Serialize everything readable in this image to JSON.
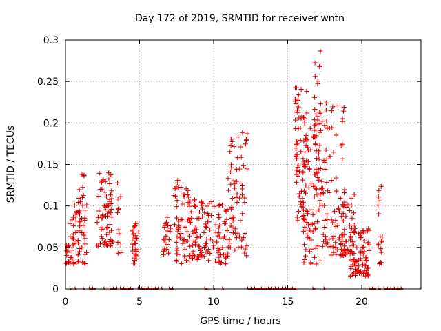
{
  "chart_data": {
    "type": "scatter",
    "title": "Day 172 of 2019, SRMTID for receiver wntn",
    "xlabel": "GPS time / hours",
    "ylabel": "SRMTID / TECUs",
    "xlim": [
      0,
      24
    ],
    "ylim": [
      0,
      0.3
    ],
    "xticks": [
      "0",
      "5",
      "10",
      "15",
      "20"
    ],
    "yticks": [
      "0",
      "0.05",
      "0.1",
      "0.15",
      "0.2",
      "0.25",
      "0.3"
    ],
    "grid": true,
    "marker": "+",
    "color": "#e00000",
    "clusters": [
      {
        "x_start": 0.0,
        "x_end": 0.35,
        "y_min": 0.03,
        "y_max": 0.06,
        "n": 14
      },
      {
        "x_start": 0.3,
        "x_end": 1.0,
        "y_min": 0.03,
        "y_max": 0.11,
        "n": 40
      },
      {
        "x_start": 0.9,
        "x_end": 1.5,
        "y_min": 0.03,
        "y_max": 0.14,
        "n": 30
      },
      {
        "x_start": 2.1,
        "x_end": 3.2,
        "y_min": 0.05,
        "y_max": 0.14,
        "n": 70
      },
      {
        "x_start": 3.5,
        "x_end": 3.8,
        "y_min": 0.04,
        "y_max": 0.13,
        "n": 12
      },
      {
        "x_start": 4.5,
        "x_end": 5.0,
        "y_min": 0.03,
        "y_max": 0.08,
        "n": 30
      },
      {
        "x_start": 6.6,
        "x_end": 7.1,
        "y_min": 0.04,
        "y_max": 0.09,
        "n": 22
      },
      {
        "x_start": 7.3,
        "x_end": 8.4,
        "y_min": 0.03,
        "y_max": 0.135,
        "n": 60
      },
      {
        "x_start": 8.3,
        "x_end": 9.4,
        "y_min": 0.035,
        "y_max": 0.11,
        "n": 60
      },
      {
        "x_start": 9.4,
        "x_end": 11.0,
        "y_min": 0.03,
        "y_max": 0.11,
        "n": 70
      },
      {
        "x_start": 10.9,
        "x_end": 12.3,
        "y_min": 0.04,
        "y_max": 0.19,
        "n": 70
      },
      {
        "x_start": 15.5,
        "x_end": 16.3,
        "y_min": 0.08,
        "y_max": 0.245,
        "n": 70
      },
      {
        "x_start": 16.0,
        "x_end": 17.2,
        "y_min": 0.03,
        "y_max": 0.22,
        "n": 80
      },
      {
        "x_start": 16.8,
        "x_end": 17.3,
        "y_min": 0.09,
        "y_max": 0.29,
        "n": 40
      },
      {
        "x_start": 17.2,
        "x_end": 18.8,
        "y_min": 0.04,
        "y_max": 0.225,
        "n": 80
      },
      {
        "x_start": 18.5,
        "x_end": 19.5,
        "y_min": 0.04,
        "y_max": 0.12,
        "n": 50
      },
      {
        "x_start": 19.2,
        "x_end": 20.5,
        "y_min": 0.015,
        "y_max": 0.075,
        "n": 90
      },
      {
        "x_start": 21.1,
        "x_end": 21.4,
        "y_min": 0.03,
        "y_max": 0.13,
        "n": 18
      }
    ],
    "zero_segments": [
      [
        0.3,
        0.4
      ],
      [
        0.65,
        0.75
      ],
      [
        1.2,
        1.3
      ],
      [
        1.6,
        2.05
      ],
      [
        2.6,
        2.7
      ],
      [
        3.0,
        3.5
      ],
      [
        3.7,
        4.6
      ],
      [
        4.9,
        6.3
      ],
      [
        6.5,
        6.6
      ],
      [
        7.0,
        7.3
      ],
      [
        9.4,
        9.6
      ],
      [
        10.0,
        10.1
      ],
      [
        10.6,
        10.7
      ],
      [
        12.3,
        15.6
      ],
      [
        16.7,
        16.85
      ],
      [
        17.45,
        17.55
      ],
      [
        20.5,
        20.95
      ],
      [
        21.1,
        21.3
      ],
      [
        21.5,
        22.8
      ]
    ]
  }
}
